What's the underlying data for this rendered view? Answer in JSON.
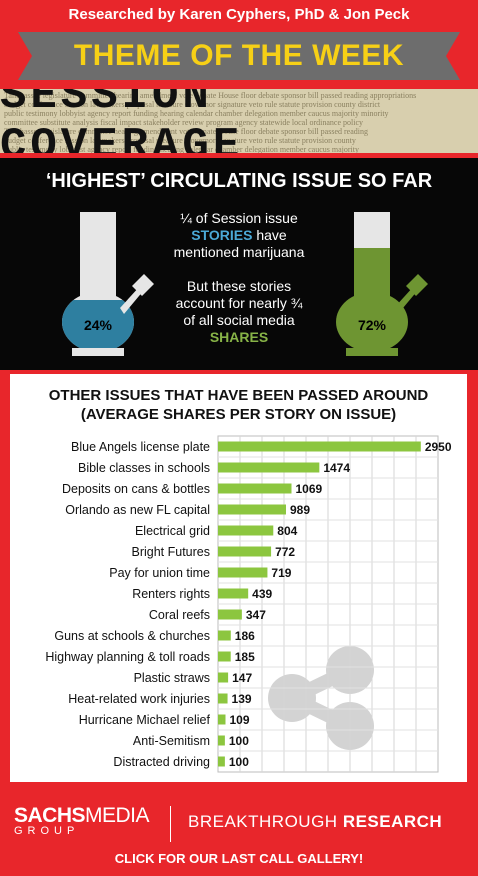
{
  "header": {
    "credit": "Researched by Karen Cyphers, PhD & Jon Peck",
    "banner": "THEME OF THE WEEK",
    "section_title": "SESSION COVERAGE"
  },
  "marijuana": {
    "title": "‘HIGHEST’ CIRCULATING ISSUE SO FAR",
    "stat1_pre": "¼ of Session issue",
    "stat1_highlight": "STORIES",
    "stat1_mid": "have",
    "stat1_post": "mentioned marijuana",
    "stat2_line1": "But these stories",
    "stat2_line2": "account for nearly ¾",
    "stat2_line3": "of all social media",
    "stat2_highlight": "SHARES",
    "left_pct": "24%",
    "right_pct": "72%",
    "left_fill": 0.24,
    "right_fill": 0.72,
    "colors": {
      "blue": "#2e7fa0",
      "green": "#6e9532",
      "glass": "#e6e6e6"
    }
  },
  "chart_data": {
    "type": "bar",
    "orientation": "horizontal",
    "title": "OTHER ISSUES THAT HAVE BEEN PASSED AROUND\n(AVERAGE SHARES PER STORY ON ISSUE)",
    "categories": [
      "Blue Angels license plate",
      "Bible classes in schools",
      "Deposits on cans & bottles",
      "Orlando as new FL capital",
      "Electrical grid",
      "Bright Futures",
      "Pay for union time",
      "Renters rights",
      "Coral reefs",
      "Guns at schools & churches",
      "Highway planning & toll roads",
      "Plastic straws",
      "Heat-related work injuries",
      "Hurricane Michael relief",
      "Anti-Semitism",
      "Distracted driving"
    ],
    "values": [
      2950,
      1474,
      1069,
      989,
      804,
      772,
      719,
      439,
      347,
      186,
      185,
      147,
      139,
      109,
      100,
      100
    ],
    "xlim": [
      0,
      3200
    ],
    "grid": true,
    "bar_color": "#8cc63f",
    "share_icon_color": "#cfcfcf"
  },
  "footer": {
    "brand_bold": "SACHS",
    "brand_light": "MEDIA",
    "brand_sub": "GROUP",
    "tagline_light": "BREAKTHROUGH",
    "tagline_bold": "RESEARCH",
    "cta": "CLICK FOR OUR LAST CALL GALLERY!"
  }
}
